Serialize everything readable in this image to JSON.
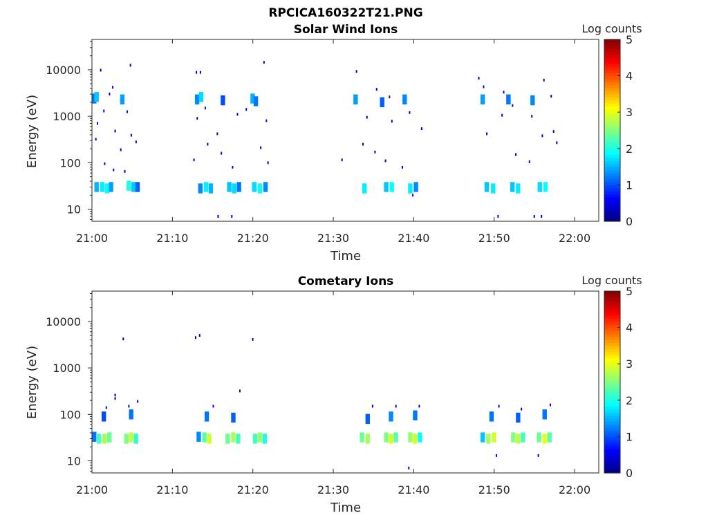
{
  "figure": {
    "file_title": "RPCICA160322T21.PNG"
  },
  "panels": [
    {
      "title": "Solar Wind Ions",
      "xlabel": "Time",
      "ylabel": "Energy (eV)",
      "colorbar_label": "Log counts"
    },
    {
      "title": "Cometary Ions",
      "xlabel": "Time",
      "ylabel": "Energy (eV)",
      "colorbar_label": "Log counts"
    }
  ],
  "chart_data": [
    {
      "type": "heatmap",
      "title": "Solar Wind Ions",
      "xlabel": "Time",
      "ylabel": "Energy (eV)",
      "x_unit": "minutes after 21:00",
      "xlim": [
        0,
        63
      ],
      "x_ticks": [
        0,
        10,
        20,
        30,
        40,
        50,
        60
      ],
      "x_tick_labels": [
        "21:00",
        "21:10",
        "21:20",
        "21:30",
        "21:40",
        "21:50",
        "22:00"
      ],
      "y_scale": "log",
      "ylim": [
        5.5,
        45000
      ],
      "y_ticks": [
        10,
        100,
        1000,
        10000
      ],
      "y_tick_labels": [
        "10",
        "100",
        "1000",
        "10000"
      ],
      "colorbar": {
        "label": "Log counts",
        "range": [
          0,
          5
        ],
        "ticks": [
          0,
          1,
          2,
          3,
          4,
          5
        ],
        "colormap": "jet"
      },
      "blocks": [
        {
          "t": 0.0,
          "e": 2400,
          "v": 1.2
        },
        {
          "t": 0.3,
          "e": 2600,
          "v": 1.6
        },
        {
          "t": 3.5,
          "e": 2300,
          "v": 1.4
        },
        {
          "t": 0.3,
          "e": 30,
          "v": 1.5
        },
        {
          "t": 1.0,
          "e": 30,
          "v": 1.8
        },
        {
          "t": 1.6,
          "e": 28,
          "v": 1.9
        },
        {
          "t": 2.1,
          "e": 30,
          "v": 1.4
        },
        {
          "t": 4.3,
          "e": 32,
          "v": 2.0
        },
        {
          "t": 4.9,
          "e": 30,
          "v": 1.6
        },
        {
          "t": 5.4,
          "e": 30,
          "v": 1.1
        },
        {
          "t": 12.8,
          "e": 2300,
          "v": 1.3
        },
        {
          "t": 13.3,
          "e": 2600,
          "v": 1.7
        },
        {
          "t": 16.0,
          "e": 2200,
          "v": 1.0
        },
        {
          "t": 19.7,
          "e": 2400,
          "v": 1.5
        },
        {
          "t": 20.1,
          "e": 2100,
          "v": 1.2
        },
        {
          "t": 13.2,
          "e": 28,
          "v": 1.3
        },
        {
          "t": 13.9,
          "e": 30,
          "v": 1.8
        },
        {
          "t": 14.5,
          "e": 28,
          "v": 1.5
        },
        {
          "t": 16.8,
          "e": 30,
          "v": 1.6
        },
        {
          "t": 17.4,
          "e": 28,
          "v": 1.7
        },
        {
          "t": 18.0,
          "e": 30,
          "v": 1.2
        },
        {
          "t": 19.9,
          "e": 30,
          "v": 1.7
        },
        {
          "t": 20.6,
          "e": 28,
          "v": 1.9
        },
        {
          "t": 21.3,
          "e": 30,
          "v": 1.3
        },
        {
          "t": 32.5,
          "e": 2300,
          "v": 1.4
        },
        {
          "t": 35.8,
          "e": 2000,
          "v": 1.1
        },
        {
          "t": 38.6,
          "e": 2300,
          "v": 1.3
        },
        {
          "t": 33.6,
          "e": 28,
          "v": 1.8
        },
        {
          "t": 36.3,
          "e": 30,
          "v": 1.6
        },
        {
          "t": 37.0,
          "e": 30,
          "v": 1.9
        },
        {
          "t": 39.3,
          "e": 28,
          "v": 1.8
        },
        {
          "t": 40.0,
          "e": 30,
          "v": 1.3
        },
        {
          "t": 48.3,
          "e": 2300,
          "v": 1.4
        },
        {
          "t": 51.5,
          "e": 2300,
          "v": 1.2
        },
        {
          "t": 54.5,
          "e": 2200,
          "v": 1.3
        },
        {
          "t": 48.8,
          "e": 30,
          "v": 1.6
        },
        {
          "t": 49.6,
          "e": 28,
          "v": 1.8
        },
        {
          "t": 52.0,
          "e": 30,
          "v": 1.6
        },
        {
          "t": 52.7,
          "e": 28,
          "v": 1.8
        },
        {
          "t": 55.4,
          "e": 30,
          "v": 1.7
        },
        {
          "t": 56.1,
          "e": 30,
          "v": 1.9
        }
      ],
      "points": [
        {
          "t": 1.0,
          "e": 9800,
          "v": 0.3
        },
        {
          "t": 2.5,
          "e": 4200,
          "v": 0.4
        },
        {
          "t": 2.1,
          "e": 3000,
          "v": 0.3
        },
        {
          "t": 1.4,
          "e": 1300,
          "v": 0.5
        },
        {
          "t": 0.6,
          "e": 700,
          "v": 0.4
        },
        {
          "t": 2.8,
          "e": 480,
          "v": 0.3
        },
        {
          "t": 0.4,
          "e": 320,
          "v": 0.4
        },
        {
          "t": 3.5,
          "e": 190,
          "v": 0.3
        },
        {
          "t": 1.5,
          "e": 95,
          "v": 0.5
        },
        {
          "t": 2.6,
          "e": 70,
          "v": 0.4
        },
        {
          "t": 4.7,
          "e": 12500,
          "v": 0.3
        },
        {
          "t": 4.3,
          "e": 1250,
          "v": 0.4
        },
        {
          "t": 4.8,
          "e": 390,
          "v": 0.3
        },
        {
          "t": 5.4,
          "e": 280,
          "v": 0.4
        },
        {
          "t": 4.0,
          "e": 65,
          "v": 0.5
        },
        {
          "t": 12.9,
          "e": 8800,
          "v": 0.3
        },
        {
          "t": 13.4,
          "e": 8800,
          "v": 0.3
        },
        {
          "t": 14.0,
          "e": 1500,
          "v": 0.4
        },
        {
          "t": 13.0,
          "e": 900,
          "v": 0.4
        },
        {
          "t": 15.5,
          "e": 420,
          "v": 0.3
        },
        {
          "t": 14.3,
          "e": 250,
          "v": 0.3
        },
        {
          "t": 16.0,
          "e": 160,
          "v": 0.4
        },
        {
          "t": 12.6,
          "e": 115,
          "v": 0.5
        },
        {
          "t": 17.4,
          "e": 80,
          "v": 0.4
        },
        {
          "t": 18.0,
          "e": 1100,
          "v": 0.3
        },
        {
          "t": 19.1,
          "e": 1400,
          "v": 0.4
        },
        {
          "t": 21.3,
          "e": 14500,
          "v": 0.3
        },
        {
          "t": 21.6,
          "e": 800,
          "v": 0.5
        },
        {
          "t": 20.9,
          "e": 210,
          "v": 0.3
        },
        {
          "t": 21.8,
          "e": 100,
          "v": 0.4
        },
        {
          "t": 15.6,
          "e": 7,
          "v": 0.6
        },
        {
          "t": 17.3,
          "e": 7,
          "v": 0.6
        },
        {
          "t": 32.8,
          "e": 9200,
          "v": 0.3
        },
        {
          "t": 35.3,
          "e": 3800,
          "v": 0.3
        },
        {
          "t": 36.9,
          "e": 2600,
          "v": 0.4
        },
        {
          "t": 34.1,
          "e": 950,
          "v": 0.3
        },
        {
          "t": 37.2,
          "e": 780,
          "v": 0.3
        },
        {
          "t": 39.4,
          "e": 1200,
          "v": 0.4
        },
        {
          "t": 40.9,
          "e": 540,
          "v": 0.3
        },
        {
          "t": 33.6,
          "e": 250,
          "v": 0.4
        },
        {
          "t": 35.1,
          "e": 170,
          "v": 0.3
        },
        {
          "t": 36.4,
          "e": 110,
          "v": 0.5
        },
        {
          "t": 38.5,
          "e": 80,
          "v": 0.4
        },
        {
          "t": 31.0,
          "e": 115,
          "v": 0.3
        },
        {
          "t": 39.8,
          "e": 20,
          "v": 0.6
        },
        {
          "t": 48.0,
          "e": 6600,
          "v": 0.3
        },
        {
          "t": 48.6,
          "e": 4300,
          "v": 0.4
        },
        {
          "t": 51.1,
          "e": 3300,
          "v": 0.3
        },
        {
          "t": 52.2,
          "e": 1700,
          "v": 0.4
        },
        {
          "t": 54.6,
          "e": 1000,
          "v": 0.3
        },
        {
          "t": 56.1,
          "e": 6000,
          "v": 0.3
        },
        {
          "t": 57.0,
          "e": 2700,
          "v": 0.4
        },
        {
          "t": 49.0,
          "e": 420,
          "v": 0.3
        },
        {
          "t": 50.9,
          "e": 1050,
          "v": 0.4
        },
        {
          "t": 52.6,
          "e": 150,
          "v": 0.3
        },
        {
          "t": 54.3,
          "e": 105,
          "v": 0.5
        },
        {
          "t": 55.9,
          "e": 380,
          "v": 0.3
        },
        {
          "t": 57.3,
          "e": 470,
          "v": 0.4
        },
        {
          "t": 57.7,
          "e": 270,
          "v": 0.3
        },
        {
          "t": 50.4,
          "e": 7,
          "v": 0.6
        },
        {
          "t": 54.9,
          "e": 7,
          "v": 0.6
        },
        {
          "t": 55.8,
          "e": 7,
          "v": 0.5
        }
      ]
    },
    {
      "type": "heatmap",
      "title": "Cometary Ions",
      "xlabel": "Time",
      "ylabel": "Energy (eV)",
      "x_unit": "minutes after 21:00",
      "xlim": [
        0,
        63
      ],
      "x_ticks": [
        0,
        10,
        20,
        30,
        40,
        50,
        60
      ],
      "x_tick_labels": [
        "21:00",
        "21:10",
        "21:20",
        "21:30",
        "21:40",
        "21:50",
        "22:00"
      ],
      "y_scale": "log",
      "ylim": [
        5.5,
        45000
      ],
      "y_ticks": [
        10,
        100,
        1000,
        10000
      ],
      "y_tick_labels": [
        "10",
        "100",
        "1000",
        "10000"
      ],
      "colorbar": {
        "label": "Log counts",
        "range": [
          0,
          5
        ],
        "ticks": [
          0,
          1,
          2,
          3,
          4,
          5
        ],
        "colormap": "jet"
      },
      "blocks": [
        {
          "t": 0.0,
          "e": 33,
          "v": 1.2
        },
        {
          "t": 0.6,
          "e": 30,
          "v": 2.2
        },
        {
          "t": 1.3,
          "e": 30,
          "v": 2.7
        },
        {
          "t": 1.9,
          "e": 32,
          "v": 2.4
        },
        {
          "t": 1.2,
          "e": 90,
          "v": 1.0
        },
        {
          "t": 4.0,
          "e": 30,
          "v": 2.5
        },
        {
          "t": 4.6,
          "e": 32,
          "v": 2.8
        },
        {
          "t": 5.2,
          "e": 30,
          "v": 2.1
        },
        {
          "t": 4.6,
          "e": 100,
          "v": 1.2
        },
        {
          "t": 13.0,
          "e": 33,
          "v": 1.3
        },
        {
          "t": 13.7,
          "e": 32,
          "v": 2.3
        },
        {
          "t": 14.3,
          "e": 30,
          "v": 2.9
        },
        {
          "t": 14.0,
          "e": 90,
          "v": 1.2
        },
        {
          "t": 16.6,
          "e": 30,
          "v": 2.4
        },
        {
          "t": 17.3,
          "e": 32,
          "v": 2.7
        },
        {
          "t": 17.9,
          "e": 30,
          "v": 2.2
        },
        {
          "t": 17.3,
          "e": 85,
          "v": 1.1
        },
        {
          "t": 20.0,
          "e": 30,
          "v": 2.2
        },
        {
          "t": 20.6,
          "e": 32,
          "v": 2.6
        },
        {
          "t": 21.2,
          "e": 30,
          "v": 2.0
        },
        {
          "t": 33.3,
          "e": 32,
          "v": 2.4
        },
        {
          "t": 34.0,
          "e": 30,
          "v": 2.7
        },
        {
          "t": 34.0,
          "e": 80,
          "v": 1.1
        },
        {
          "t": 36.3,
          "e": 32,
          "v": 2.5
        },
        {
          "t": 36.9,
          "e": 30,
          "v": 2.9
        },
        {
          "t": 37.5,
          "e": 32,
          "v": 2.3
        },
        {
          "t": 36.9,
          "e": 90,
          "v": 1.3
        },
        {
          "t": 39.3,
          "e": 32,
          "v": 2.6
        },
        {
          "t": 39.9,
          "e": 30,
          "v": 2.9
        },
        {
          "t": 40.5,
          "e": 32,
          "v": 1.9
        },
        {
          "t": 39.9,
          "e": 95,
          "v": 1.2
        },
        {
          "t": 48.3,
          "e": 32,
          "v": 1.6
        },
        {
          "t": 49.0,
          "e": 30,
          "v": 2.7
        },
        {
          "t": 49.7,
          "e": 32,
          "v": 2.9
        },
        {
          "t": 49.4,
          "e": 90,
          "v": 1.2
        },
        {
          "t": 52.1,
          "e": 32,
          "v": 2.5
        },
        {
          "t": 52.7,
          "e": 30,
          "v": 2.8
        },
        {
          "t": 53.3,
          "e": 32,
          "v": 2.2
        },
        {
          "t": 52.7,
          "e": 85,
          "v": 1.1
        },
        {
          "t": 55.3,
          "e": 32,
          "v": 2.4
        },
        {
          "t": 56.0,
          "e": 30,
          "v": 3.0
        },
        {
          "t": 56.6,
          "e": 32,
          "v": 2.3
        },
        {
          "t": 56.0,
          "e": 100,
          "v": 1.2
        }
      ],
      "points": [
        {
          "t": 3.8,
          "e": 4200,
          "v": 0.3
        },
        {
          "t": 2.8,
          "e": 260,
          "v": 0.3
        },
        {
          "t": 2.8,
          "e": 220,
          "v": 0.3
        },
        {
          "t": 5.6,
          "e": 190,
          "v": 0.5
        },
        {
          "t": 1.7,
          "e": 140,
          "v": 0.6
        },
        {
          "t": 4.5,
          "e": 150,
          "v": 0.7
        },
        {
          "t": 12.8,
          "e": 4500,
          "v": 0.3
        },
        {
          "t": 13.3,
          "e": 5000,
          "v": 0.3
        },
        {
          "t": 15.0,
          "e": 150,
          "v": 0.5
        },
        {
          "t": 18.3,
          "e": 320,
          "v": 0.3
        },
        {
          "t": 19.9,
          "e": 4100,
          "v": 0.3
        },
        {
          "t": 34.8,
          "e": 150,
          "v": 0.5
        },
        {
          "t": 37.7,
          "e": 150,
          "v": 0.6
        },
        {
          "t": 40.6,
          "e": 150,
          "v": 0.5
        },
        {
          "t": 50.5,
          "e": 150,
          "v": 0.5
        },
        {
          "t": 53.3,
          "e": 130,
          "v": 0.5
        },
        {
          "t": 56.9,
          "e": 160,
          "v": 0.6
        },
        {
          "t": 39.3,
          "e": 7,
          "v": 0.6
        },
        {
          "t": 50.2,
          "e": 13,
          "v": 0.5
        },
        {
          "t": 55.4,
          "e": 13,
          "v": 0.5
        }
      ]
    }
  ]
}
